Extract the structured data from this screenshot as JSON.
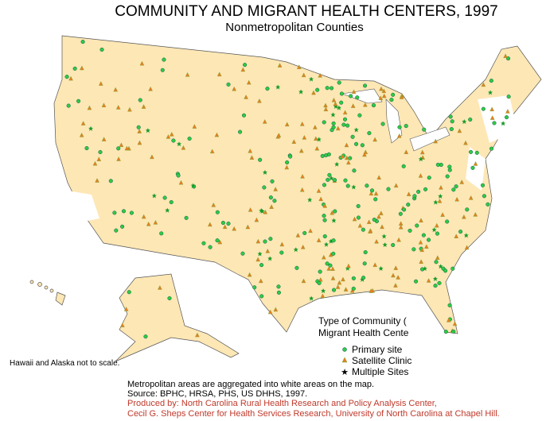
{
  "header": {
    "title": "COMMUNITY AND MIGRANT HEALTH CENTERS, 1997",
    "subtitle": "Nonmetropolitan  Counties"
  },
  "legend": {
    "title_lines": [
      "Type of Community (",
      "Migrant Health Cente"
    ],
    "items": [
      "Primary site",
      "Satellite Clinic",
      "Multiple Sites"
    ]
  },
  "note": "Hawaii and Alaska not to scale.",
  "footer": {
    "lines": [
      "Metropolitan areas are aggregated into white areas on the map.",
      "Source: BPHC, HRSA, PHS, US DHHS, 1997."
    ],
    "credit_lines": [
      "Produced by: North Carolina Rural Health Research and Policy Analysis Center,",
      "Cecil G. Sheps Center for Health Services Research, University of North Carolina at Chapel Hill."
    ]
  }
}
